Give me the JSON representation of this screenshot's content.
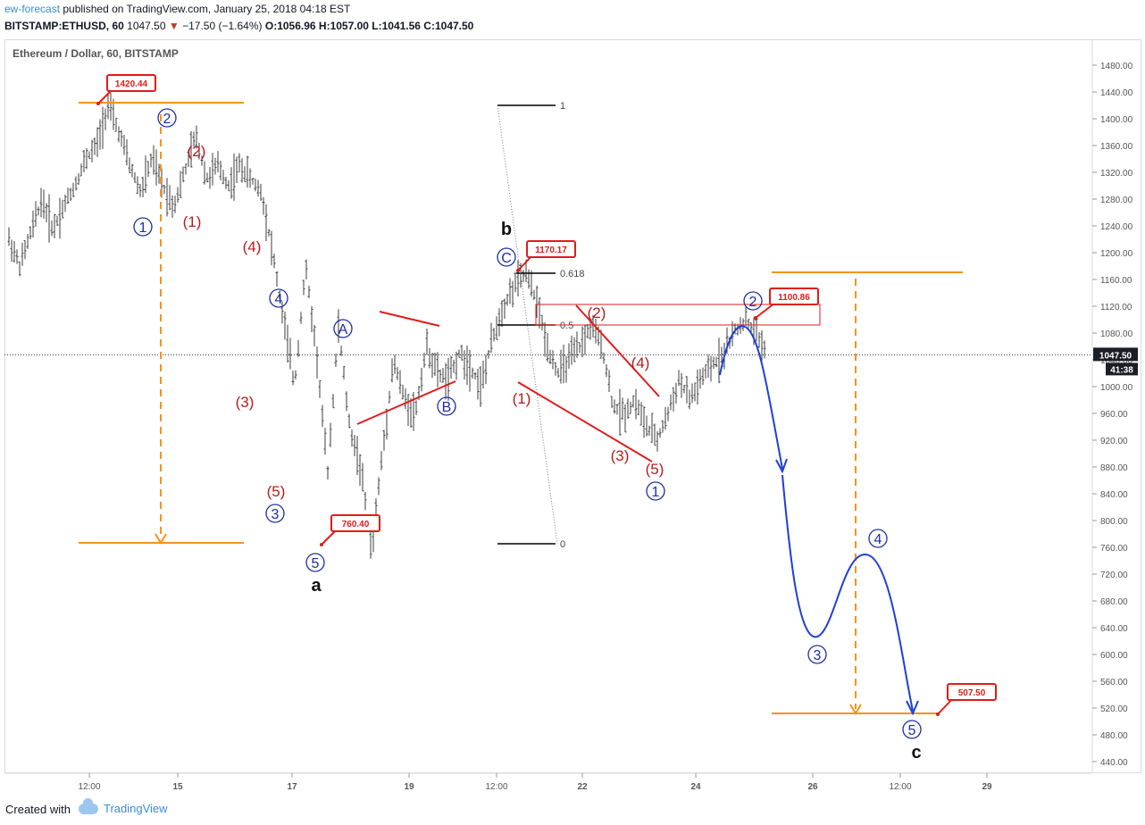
{
  "header": {
    "author": "ew-forecast",
    "published_text": " published on TradingView.com, January 25, 2018 04:18 EST",
    "symbol": "BITSTAMP:ETHUSD, 60",
    "last": "1047.50",
    "change_arrow": "▼",
    "change": "−17.50 (−1.64%)",
    "ohlc": "O:1056.96 H:1057.00 L:1041.56 C:1047.50"
  },
  "chart_title": "Ethereum / Dollar, 60, BITSTAMP",
  "footer": {
    "created_with": "Created with",
    "brand": "TradingView"
  },
  "colors": {
    "orange": "#f7931a",
    "red": "#e01b1b",
    "navy": "#1c2ea0",
    "dark_red": "#b71c1c",
    "forecast_blue": "#1f3fd6",
    "bar": "#3d3d3d"
  },
  "chart_data": {
    "type": "ohlc_bar",
    "symbol": "BITSTAMP:ETHUSD",
    "interval": "60",
    "ylim": [
      420,
      1500
    ],
    "y_ticks": [
      "1480.00",
      "1440.00",
      "1400.00",
      "1360.00",
      "1320.00",
      "1280.00",
      "1240.00",
      "1200.00",
      "1160.00",
      "1120.00",
      "1080.00",
      "1040.00",
      "1000.00",
      "960.00",
      "920.00",
      "880.00",
      "840.00",
      "800.00",
      "760.00",
      "720.00",
      "680.00",
      "640.00",
      "600.00",
      "560.00",
      "520.00",
      "480.00",
      "440.00"
    ],
    "x_ticks": [
      "12:00",
      "15",
      "17",
      "19",
      "12:00",
      "22",
      "24",
      "26",
      "12:00",
      "29"
    ],
    "last_price_label": "1047.50",
    "countdown_label": "41:38",
    "price_path": [
      [
        0,
        1220
      ],
      [
        1,
        1180
      ],
      [
        2,
        1230
      ],
      [
        3,
        1280
      ],
      [
        4,
        1235
      ],
      [
        5,
        1270
      ],
      [
        6,
        1300
      ],
      [
        7,
        1340
      ],
      [
        8,
        1360
      ],
      [
        9,
        1420
      ],
      [
        10,
        1380
      ],
      [
        11,
        1330
      ],
      [
        12,
        1290
      ],
      [
        13,
        1340
      ],
      [
        14,
        1300
      ],
      [
        15,
        1270
      ],
      [
        16,
        1320
      ],
      [
        17,
        1375
      ],
      [
        18,
        1310
      ],
      [
        19,
        1330
      ],
      [
        20,
        1300
      ],
      [
        21,
        1330
      ],
      [
        22,
        1310
      ],
      [
        23,
        1290
      ],
      [
        24,
        1200
      ],
      [
        25,
        1100
      ],
      [
        26,
        1000
      ],
      [
        27,
        1180
      ],
      [
        28,
        1050
      ],
      [
        29,
        870
      ],
      [
        30,
        1090
      ],
      [
        31,
        940
      ],
      [
        32,
        880
      ],
      [
        33,
        760
      ],
      [
        34,
        900
      ],
      [
        35,
        1040
      ],
      [
        36,
        980
      ],
      [
        37,
        960
      ],
      [
        38,
        1060
      ],
      [
        39,
        1020
      ],
      [
        40,
        1010
      ],
      [
        41,
        1050
      ],
      [
        42,
        1030
      ],
      [
        43,
        1000
      ],
      [
        44,
        1070
      ],
      [
        45,
        1120
      ],
      [
        46,
        1150
      ],
      [
        47,
        1170
      ],
      [
        48,
        1130
      ],
      [
        49,
        1060
      ],
      [
        50,
        1020
      ],
      [
        51,
        1040
      ],
      [
        52,
        1060
      ],
      [
        53,
        1090
      ],
      [
        54,
        1060
      ],
      [
        55,
        970
      ],
      [
        56,
        960
      ],
      [
        57,
        980
      ],
      [
        58,
        940
      ],
      [
        59,
        920
      ],
      [
        60,
        960
      ],
      [
        61,
        1010
      ],
      [
        62,
        980
      ],
      [
        63,
        1010
      ],
      [
        64,
        1030
      ],
      [
        65,
        1050
      ],
      [
        66,
        1080
      ],
      [
        67,
        1100
      ],
      [
        68,
        1080
      ],
      [
        69,
        1050
      ]
    ],
    "annotations": {
      "price_labels": [
        "1420.44",
        "760.40",
        "1170.17",
        "1100.86",
        "507.50"
      ],
      "fib_levels": [
        "1",
        "0.618",
        "0.5",
        "0"
      ],
      "wave_letters": [
        "a",
        "b",
        "c"
      ],
      "circled_labels": [
        "1",
        "2",
        "3",
        "4",
        "5",
        "A",
        "B",
        "C",
        "1",
        "2",
        "3",
        "4",
        "5"
      ],
      "paren_labels": [
        "(1)",
        "(2)",
        "(3)",
        "(4)",
        "(5)",
        "(1)",
        "(2)",
        "(3)",
        "(4)",
        "(5)"
      ]
    }
  }
}
